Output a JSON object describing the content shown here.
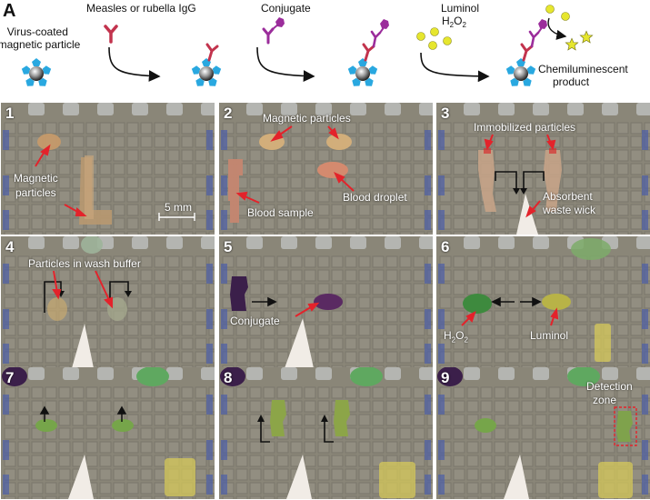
{
  "figure_letter": "A",
  "schematic": {
    "step_labels": [
      "Virus-coated\nmagnetic particle",
      "Measles or rubella IgG",
      "Conjugate",
      "Luminol",
      "Chemiluminescent\nproduct"
    ],
    "h2o2": "H2O2"
  },
  "panels": [
    {
      "number": "1",
      "labels": {
        "magnetic_particles_1": "Magnetic",
        "magnetic_particles_2": "particles",
        "scale": "5 mm"
      }
    },
    {
      "number": "2",
      "labels": {
        "magnetic_particles": "Magnetic particles",
        "blood_sample": "Blood sample",
        "blood_droplet": "Blood droplet"
      }
    },
    {
      "number": "3",
      "labels": {
        "immobilized": "Immobilized particles",
        "wick_1": "Absorbent",
        "wick_2": "waste wick"
      }
    },
    {
      "number": "4",
      "labels": {
        "wash_buffer": "Particles in wash buffer"
      }
    },
    {
      "number": "5",
      "labels": {
        "conjugate": "Conjugate"
      }
    },
    {
      "number": "6",
      "labels": {
        "h2o2": "H2O2",
        "luminol": "Luminol"
      }
    },
    {
      "number": "7",
      "labels": {}
    },
    {
      "number": "8",
      "labels": {}
    },
    {
      "number": "9",
      "labels": {
        "detection_1": "Detection",
        "detection_2": "zone"
      }
    }
  ],
  "colors": {
    "particle_blue": "#29a8e0",
    "antibody_red": "#c2334d",
    "conjugate_purple": "#9b2d9b",
    "luminol_yellow": "#e6e62e",
    "arrow_red": "#e3232b",
    "board_bg": "#8a8678"
  }
}
